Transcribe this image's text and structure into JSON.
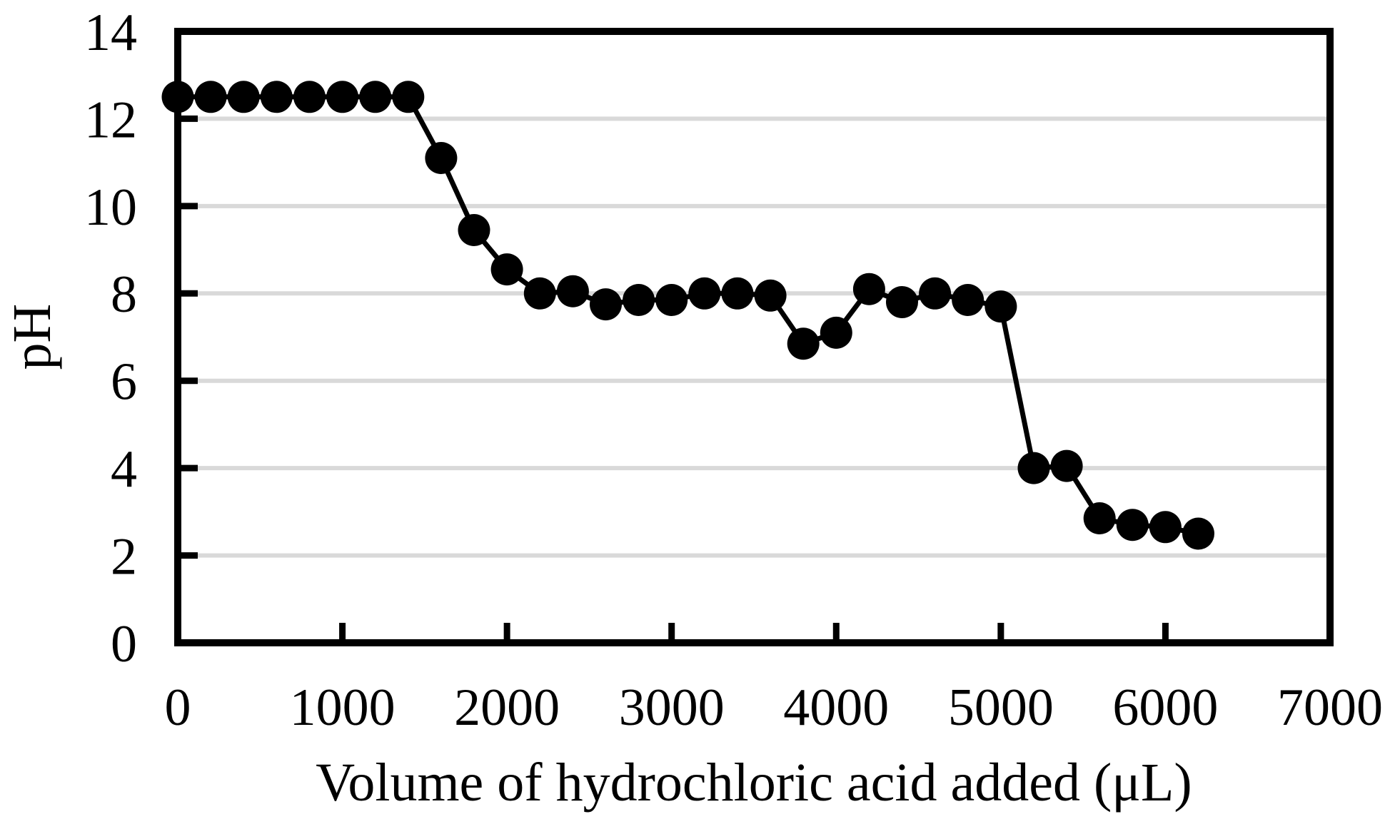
{
  "chart_data": {
    "type": "line",
    "title": "",
    "xlabel": "Volume of hydrochloric acid added (μL)",
    "ylabel": "pH",
    "xlim": [
      0,
      7000
    ],
    "ylim": [
      0,
      14
    ],
    "x_ticks": [
      0,
      1000,
      2000,
      3000,
      4000,
      5000,
      6000,
      7000
    ],
    "y_ticks": [
      0,
      2,
      4,
      6,
      8,
      10,
      12,
      14
    ],
    "grid": "horizontal gridlines at pH 2,4,6,8,10,12",
    "legend_position": "none",
    "series": [
      {
        "name": "pH vs volume of HCl added",
        "marker": "filled-circle",
        "color": "#000000",
        "points": [
          [
            0,
            12.5
          ],
          [
            200,
            12.5
          ],
          [
            400,
            12.5
          ],
          [
            600,
            12.5
          ],
          [
            800,
            12.5
          ],
          [
            1000,
            12.5
          ],
          [
            1200,
            12.5
          ],
          [
            1400,
            12.5
          ],
          [
            1600,
            11.1
          ],
          [
            1800,
            9.45
          ],
          [
            2000,
            8.55
          ],
          [
            2200,
            8.0
          ],
          [
            2400,
            8.05
          ],
          [
            2600,
            7.75
          ],
          [
            2800,
            7.85
          ],
          [
            3000,
            7.85
          ],
          [
            3200,
            8.0
          ],
          [
            3400,
            8.0
          ],
          [
            3600,
            7.95
          ],
          [
            3800,
            6.85
          ],
          [
            4000,
            7.1
          ],
          [
            4200,
            8.1
          ],
          [
            4400,
            7.8
          ],
          [
            4600,
            8.0
          ],
          [
            4800,
            7.85
          ],
          [
            5000,
            7.7
          ],
          [
            5200,
            4.0
          ],
          [
            5400,
            4.05
          ],
          [
            5600,
            2.85
          ],
          [
            5800,
            2.7
          ],
          [
            6000,
            2.65
          ],
          [
            6200,
            2.5
          ]
        ]
      }
    ]
  },
  "colors": {
    "background": "#ffffff",
    "axis": "#000000",
    "gridline": "#d9d9d9",
    "marker": "#000000",
    "line": "#000000",
    "text": "#000000"
  }
}
